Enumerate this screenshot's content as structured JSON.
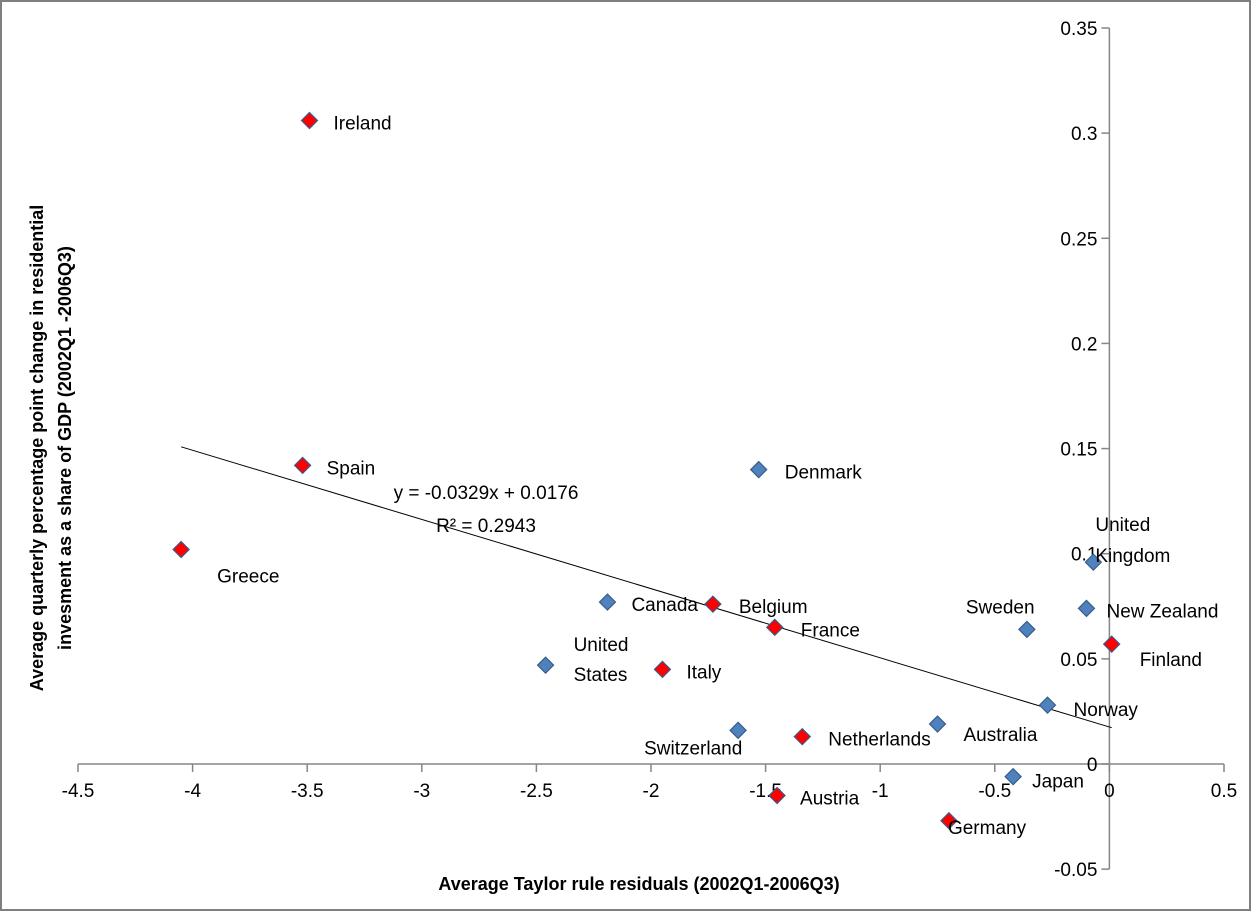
{
  "chart_data": {
    "type": "scatter",
    "title": "",
    "xlabel": "Average Taylor rule residuals (2002Q1-2006Q3)",
    "ylabel_lines": [
      "Average quarterly percentage point change in residential",
      "invesment as a share of GDP (2002Q1 -2006Q3)"
    ],
    "xlim": [
      -4.5,
      0.5
    ],
    "ylim": [
      -0.05,
      0.35
    ],
    "x_ticks": [
      -4.5,
      -4,
      -3.5,
      -3,
      -2.5,
      -2,
      -1.5,
      -1,
      -0.5,
      0,
      0.5
    ],
    "x_tick_labels": [
      "-4.5",
      "-4",
      "-3.5",
      "-3",
      "-2.5",
      "-2",
      "-1.5",
      "-1",
      "-0.5",
      "0",
      "0.5"
    ],
    "y_ticks": [
      -0.05,
      0,
      0.05,
      0.1,
      0.15,
      0.2,
      0.25,
      0.3,
      0.35
    ],
    "y_tick_labels": [
      "-0.05",
      "0",
      "0.05",
      "0.1",
      "0.15",
      "0.2",
      "0.25",
      "0.3",
      "0.35"
    ],
    "grid": false,
    "colors": {
      "red_marker": "#ff0000",
      "blue_marker": "#4f81bd",
      "marker_stroke": "#385d8a",
      "trendline": "#000000"
    },
    "points": [
      {
        "label": "Ireland",
        "x": -3.49,
        "y": 0.306,
        "color": "red"
      },
      {
        "label": "Spain",
        "x": -3.52,
        "y": 0.142,
        "color": "red"
      },
      {
        "label": "Greece",
        "x": -4.05,
        "y": 0.102,
        "color": "red"
      },
      {
        "label": "Denmark",
        "x": -1.53,
        "y": 0.14,
        "color": "blue"
      },
      {
        "label": "Canada",
        "x": -2.19,
        "y": 0.077,
        "color": "blue"
      },
      {
        "label": "Belgium",
        "x": -1.73,
        "y": 0.076,
        "color": "red"
      },
      {
        "label": "France",
        "x": -1.46,
        "y": 0.065,
        "color": "red"
      },
      {
        "label": "United States",
        "label_lines": [
          "United",
          "States"
        ],
        "x": -2.46,
        "y": 0.047,
        "color": "blue"
      },
      {
        "label": "Italy",
        "x": -1.95,
        "y": 0.045,
        "color": "red"
      },
      {
        "label": "Switzerland",
        "x": -1.62,
        "y": 0.016,
        "color": "blue"
      },
      {
        "label": "Netherlands",
        "x": -1.34,
        "y": 0.013,
        "color": "red"
      },
      {
        "label": "Australia",
        "x": -0.75,
        "y": 0.019,
        "color": "blue"
      },
      {
        "label": "Japan",
        "x": -0.42,
        "y": -0.006,
        "color": "blue"
      },
      {
        "label": "Austria",
        "x": -1.45,
        "y": -0.015,
        "color": "red"
      },
      {
        "label": "Germany",
        "x": -0.7,
        "y": -0.027,
        "color": "red"
      },
      {
        "label": "Norway",
        "x": -0.27,
        "y": 0.028,
        "color": "blue"
      },
      {
        "label": "Sweden",
        "x": -0.36,
        "y": 0.064,
        "color": "blue"
      },
      {
        "label": "New Zealand",
        "x": -0.1,
        "y": 0.074,
        "color": "blue"
      },
      {
        "label": "United Kingdom",
        "label_lines": [
          "United",
          "Kingdom"
        ],
        "x": -0.07,
        "y": 0.096,
        "color": "blue"
      },
      {
        "label": "Finland",
        "x": 0.01,
        "y": 0.057,
        "color": "red"
      }
    ],
    "trendline": {
      "slope": -0.0329,
      "intercept": 0.0176,
      "x_range": [
        -4.05,
        0.01
      ],
      "equation": "y = -0.0329x + 0.0176",
      "r_squared": "R² = 0.2943"
    }
  }
}
